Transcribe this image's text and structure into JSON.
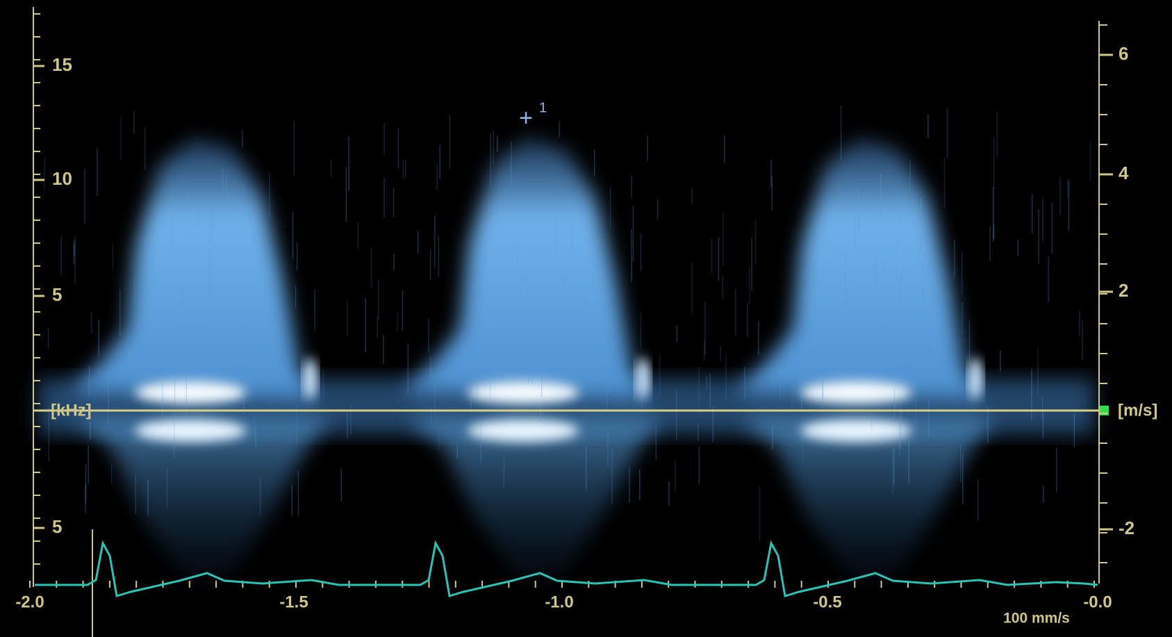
{
  "left_axis": {
    "labels": [
      "15",
      "10",
      "5",
      "5"
    ],
    "unit": "[kHz]"
  },
  "right_axis": {
    "labels": [
      "6",
      "4",
      "2",
      "-2"
    ],
    "unit": "[m/s]"
  },
  "time_axis": {
    "labels": [
      "-2.0",
      "-1.5",
      "-1.0",
      "-0.5",
      "-0.0"
    ]
  },
  "sweep_speed": "100 mm/s",
  "cursor_label": "1"
}
